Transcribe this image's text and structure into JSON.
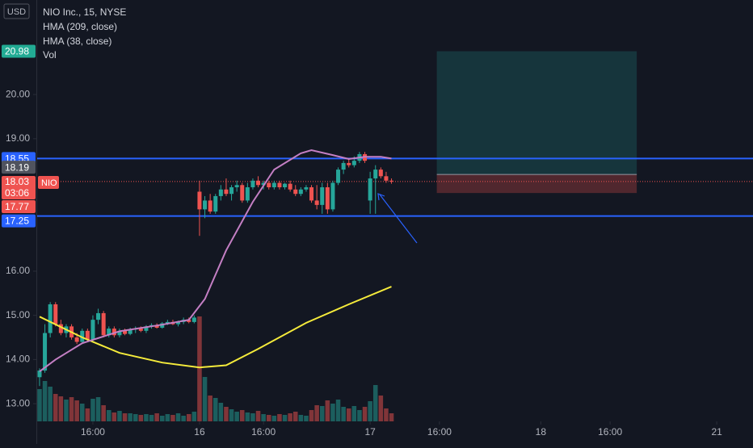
{
  "chart_data": {
    "type": "candlestick",
    "title": "NIO Inc., 15, NYSE",
    "currency": "USD",
    "symbol": "NIO",
    "countdown": "03:06",
    "volume_label": "Vol",
    "up_color": "#26a69a",
    "down_color": "#ef5350",
    "xlim": [
      -0.6,
      133.8
    ],
    "ylim": [
      12.6,
      22.14
    ],
    "vlim": [
      0,
      1400
    ],
    "yticks": [
      {
        "value": 13,
        "label": "13.00"
      },
      {
        "value": 14,
        "label": "14.00"
      },
      {
        "value": 15,
        "label": "15.00"
      },
      {
        "value": 16,
        "label": "16.00"
      },
      {
        "value": 19,
        "label": "19.00"
      },
      {
        "value": 20,
        "label": "20.00"
      }
    ],
    "xticks": [
      {
        "value": 10,
        "label": "16:00"
      },
      {
        "value": 30,
        "label": "16"
      },
      {
        "value": 42,
        "label": "16:00"
      },
      {
        "value": 62,
        "label": "17"
      },
      {
        "value": 75,
        "label": "16:00"
      },
      {
        "value": 94,
        "label": "18"
      },
      {
        "value": 107,
        "label": "16:00"
      },
      {
        "value": 127,
        "label": "21"
      }
    ],
    "ohlc": [
      [
        13.6,
        13.8,
        13.4,
        13.75
      ],
      [
        13.75,
        14.8,
        13.7,
        14.6
      ],
      [
        14.6,
        15.3,
        14.5,
        15.25
      ],
      [
        15.25,
        15.3,
        14.75,
        14.8
      ],
      [
        14.8,
        14.9,
        14.55,
        14.6
      ],
      [
        14.6,
        14.8,
        14.5,
        14.75
      ],
      [
        14.75,
        14.8,
        14.45,
        14.5
      ],
      [
        14.5,
        14.6,
        14.35,
        14.4
      ],
      [
        14.4,
        14.7,
        14.35,
        14.65
      ],
      [
        14.65,
        14.7,
        14.4,
        14.45
      ],
      [
        14.45,
        15.0,
        14.4,
        14.9
      ],
      [
        14.9,
        15.15,
        14.8,
        15.05
      ],
      [
        15.05,
        15.1,
        14.5,
        14.55
      ],
      [
        14.55,
        14.75,
        14.5,
        14.7
      ],
      [
        14.7,
        14.75,
        14.5,
        14.55
      ],
      [
        14.55,
        14.7,
        14.5,
        14.65
      ],
      [
        14.65,
        14.7,
        14.55,
        14.58
      ],
      [
        14.58,
        14.72,
        14.55,
        14.68
      ],
      [
        14.68,
        14.75,
        14.6,
        14.7
      ],
      [
        14.7,
        14.75,
        14.62,
        14.65
      ],
      [
        14.65,
        14.78,
        14.6,
        14.75
      ],
      [
        14.75,
        14.82,
        14.7,
        14.78
      ],
      [
        14.78,
        14.82,
        14.7,
        14.72
      ],
      [
        14.72,
        14.85,
        14.7,
        14.82
      ],
      [
        14.82,
        14.9,
        14.78,
        14.85
      ],
      [
        14.85,
        14.9,
        14.78,
        14.8
      ],
      [
        14.8,
        14.88,
        14.75,
        14.85
      ],
      [
        14.85,
        14.95,
        14.8,
        14.9
      ],
      [
        14.9,
        14.95,
        14.82,
        14.85
      ],
      [
        14.85,
        15.0,
        14.82,
        14.95
      ],
      [
        17.8,
        18.05,
        16.8,
        17.4
      ],
      [
        17.4,
        17.7,
        17.2,
        17.6
      ],
      [
        17.6,
        17.75,
        17.3,
        17.35
      ],
      [
        17.35,
        17.75,
        17.3,
        17.7
      ],
      [
        17.7,
        17.95,
        17.6,
        17.85
      ],
      [
        17.85,
        18.1,
        17.7,
        17.75
      ],
      [
        17.75,
        17.95,
        17.6,
        17.9
      ],
      [
        17.9,
        18.05,
        17.8,
        17.95
      ],
      [
        17.95,
        18.0,
        17.55,
        17.6
      ],
      [
        17.6,
        18.0,
        17.55,
        17.9
      ],
      [
        17.9,
        18.1,
        17.85,
        18.05
      ],
      [
        18.05,
        18.15,
        17.9,
        17.95
      ],
      [
        17.95,
        18.05,
        17.85,
        18.0
      ],
      [
        18.0,
        18.05,
        17.85,
        17.9
      ],
      [
        17.9,
        18.05,
        17.85,
        18.0
      ],
      [
        18.0,
        18.05,
        17.85,
        17.9
      ],
      [
        17.9,
        18.0,
        17.85,
        17.98
      ],
      [
        17.98,
        18.05,
        17.8,
        17.85
      ],
      [
        17.85,
        17.95,
        17.7,
        17.75
      ],
      [
        17.75,
        17.9,
        17.7,
        17.85
      ],
      [
        17.85,
        17.95,
        17.8,
        17.9
      ],
      [
        17.9,
        17.95,
        17.55,
        17.6
      ],
      [
        17.6,
        17.95,
        17.4,
        17.5
      ],
      [
        17.5,
        18.0,
        17.3,
        17.9
      ],
      [
        17.9,
        18.0,
        17.3,
        17.4
      ],
      [
        17.4,
        18.05,
        17.35,
        18.0
      ],
      [
        18.0,
        18.35,
        17.95,
        18.3
      ],
      [
        18.3,
        18.5,
        18.2,
        18.45
      ],
      [
        18.45,
        18.55,
        18.35,
        18.4
      ],
      [
        18.4,
        18.6,
        18.35,
        18.5
      ],
      [
        18.5,
        18.7,
        18.45,
        18.65
      ],
      [
        18.65,
        18.7,
        18.45,
        18.5
      ],
      [
        17.6,
        18.25,
        17.3,
        18.1
      ],
      [
        18.1,
        18.4,
        17.3,
        18.3
      ],
      [
        18.3,
        18.35,
        18.1,
        18.15
      ],
      [
        18.15,
        18.25,
        18.0,
        18.05
      ],
      [
        18.05,
        18.1,
        17.98,
        18.03
      ]
    ],
    "volume": [
      400,
      500,
      430,
      340,
      310,
      270,
      300,
      260,
      220,
      160,
      280,
      300,
      200,
      140,
      110,
      130,
      100,
      100,
      90,
      80,
      90,
      80,
      100,
      70,
      90,
      80,
      100,
      70,
      90,
      120,
      1300,
      550,
      320,
      290,
      230,
      180,
      150,
      120,
      140,
      110,
      100,
      130,
      90,
      80,
      70,
      90,
      80,
      100,
      120,
      80,
      70,
      140,
      200,
      190,
      260,
      220,
      270,
      180,
      160,
      190,
      140,
      180,
      250,
      450,
      320,
      160,
      100
    ],
    "series": [
      {
        "name": "HMA (209, close)",
        "color": "#f5eb3b",
        "x": [
          0,
          8,
          15,
          23,
          30,
          35,
          41,
          50,
          58,
          66
        ],
        "values": [
          14.97,
          14.5,
          14.15,
          13.93,
          13.82,
          13.87,
          14.24,
          14.83,
          15.25,
          15.65
        ]
      },
      {
        "name": "HMA (38, close)",
        "color": "#c47fc4",
        "x": [
          0,
          3,
          8,
          15,
          23,
          28,
          31,
          35,
          40,
          44,
          49,
          51,
          55,
          58,
          61,
          64,
          66
        ],
        "values": [
          13.73,
          14.0,
          14.37,
          14.64,
          14.79,
          14.9,
          15.37,
          16.47,
          17.57,
          18.3,
          18.67,
          18.74,
          18.63,
          18.54,
          18.59,
          18.59,
          18.55
        ]
      }
    ],
    "levels": [
      {
        "value": 18.55,
        "color": "#2962ff"
      },
      {
        "value": 17.25,
        "color": "#2962ff"
      }
    ],
    "last_price": 18.03,
    "position": {
      "x_start": 74.5,
      "x_end": 112,
      "target": 20.98,
      "entry": 18.19,
      "stop": 17.77
    }
  }
}
